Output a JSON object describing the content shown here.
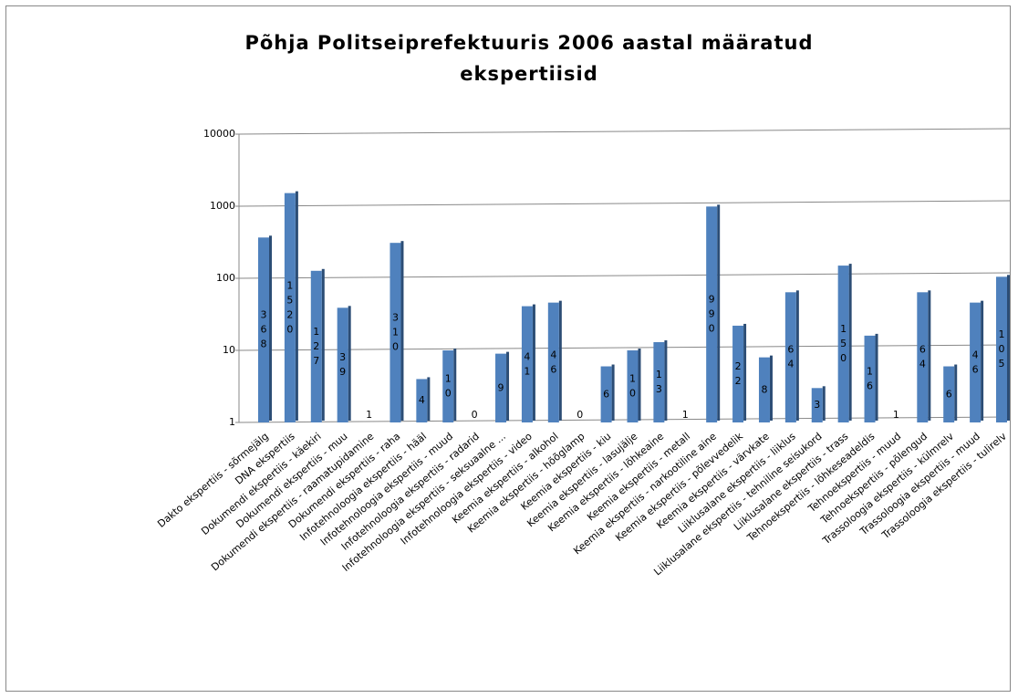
{
  "chart_data": {
    "type": "bar",
    "title": "Põhja Politseiprefektuuris 2006 aastal määratud ekspertiisid",
    "categories": [
      "Dakto ekspertiis - sõrmejälg",
      "DNA ekspertiis",
      "Dokumendi ekspertiis - käekiri",
      "Dokumendi ekspertiis - muu",
      "Dokumendi ekspertiis - raamatupidamine",
      "Dokumendi ekspertiis - raha",
      "Infotehnoloogia ekspertiis - hääl",
      "Infotehnoloogia ekspertiis - muud",
      "Infotehnoloogia ekspertiis - radarid",
      "Infotehnoloogia ekspertiis - seksuaalne ...",
      "Infotehnoloogia ekspertiis - video",
      "Keemia ekspertiis - alkohol",
      "Keemia ekspertiis - hõõglamp",
      "Keemia ekspertiis - kiu",
      "Keemia ekspertiis - lasujälje",
      "Keemia ekspertiis - lõhkeaine",
      "Keemia ekspertiis - metall",
      "Keemia ekspertiis - narkootiline aine",
      "Keemia ekspertiis - põlevvedelik",
      "Keemia ekspertiis - värvkate",
      "Liiklusalane ekspertiis - liiklus",
      "Liiklusalane ekspertiis - tehniline seisukord",
      "Liiklusalane ekspertiis - trass",
      "Tehnoekspertiis - lõhkeseadeldis",
      "Tehnoekspertiis - muud",
      "Tehnoekspertiis - põlengud",
      "Trassoloogia ekspertiis - külmrelv",
      "Trassoloogia ekspertiis - muud",
      "Trassoloogia ekspertiis - tulirelv"
    ],
    "values": [
      368,
      1520,
      127,
      39,
      1,
      310,
      4,
      10,
      0,
      9,
      41,
      46,
      0,
      6,
      10,
      13,
      1,
      990,
      22,
      8,
      64,
      3,
      150,
      16,
      1,
      64,
      6,
      46,
      105
    ],
    "color": "#4f81bd",
    "log_scale": true,
    "ylim": [
      1,
      10000
    ],
    "yticks": [
      1,
      10,
      100,
      1000,
      10000
    ],
    "grid": true
  }
}
